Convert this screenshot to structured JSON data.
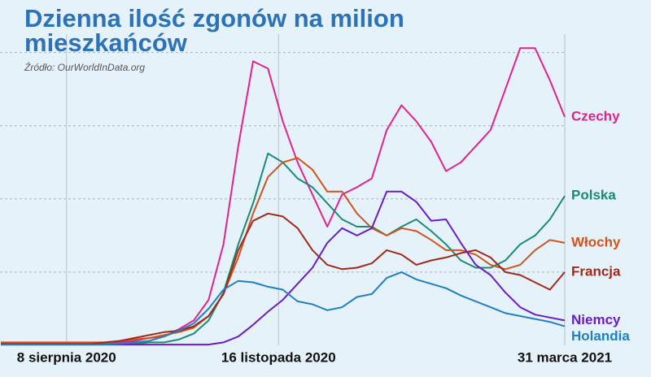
{
  "chart_data": {
    "type": "line",
    "title": "Dzienna ilość zgonów na milion mieszkańców",
    "subtitle": "Źródło: OurWorldInData.org",
    "x": [
      "2020-07-08",
      "2020-07-15",
      "2020-07-22",
      "2020-07-29",
      "2020-08-05",
      "2020-08-12",
      "2020-08-19",
      "2020-08-26",
      "2020-09-02",
      "2020-09-09",
      "2020-09-16",
      "2020-09-23",
      "2020-09-30",
      "2020-10-07",
      "2020-10-14",
      "2020-10-21",
      "2020-10-28",
      "2020-11-04",
      "2020-11-11",
      "2020-11-18",
      "2020-11-25",
      "2020-12-02",
      "2020-12-09",
      "2020-12-16",
      "2020-12-23",
      "2020-12-30",
      "2021-01-06",
      "2021-01-13",
      "2021-01-20",
      "2021-01-27",
      "2021-02-03",
      "2021-02-10",
      "2021-02-17",
      "2021-02-24",
      "2021-03-03",
      "2021-03-10",
      "2021-03-17",
      "2021-03-24",
      "2021-03-31"
    ],
    "xlim": [
      "2020-07-08",
      "2021-03-31"
    ],
    "xticks": [
      {
        "value": "2020-08-08",
        "label": "8 sierpnia 2020"
      },
      {
        "value": "2020-11-16",
        "label": "16 listopada 2020"
      },
      {
        "value": "2021-03-31",
        "label": "31 marca 2021"
      }
    ],
    "ylim": [
      0,
      20.7
    ],
    "yticks": [
      5,
      10,
      15,
      20
    ],
    "grid": true,
    "series": [
      {
        "name": "Czechy",
        "color": "#e0228e",
        "values": [
          0.1,
          0.1,
          0.1,
          0.1,
          0.1,
          0.1,
          0.1,
          0.1,
          0.2,
          0.3,
          0.5,
          0.6,
          1.1,
          1.7,
          3.1,
          6.9,
          13.6,
          19.4,
          18.9,
          15.3,
          12.5,
          10.3,
          8.1,
          10.3,
          10.8,
          11.4,
          14.7,
          16.4,
          15.3,
          13.9,
          11.9,
          12.5,
          13.6,
          14.7,
          17.5,
          20.3,
          20.3,
          18.1,
          15.6
        ]
      },
      {
        "name": "Polska",
        "color": "#1a8a76",
        "values": [
          0.1,
          0.1,
          0.1,
          0.1,
          0.1,
          0.1,
          0.1,
          0.1,
          0.1,
          0.1,
          0.2,
          0.2,
          0.4,
          0.8,
          1.7,
          3.6,
          6.9,
          9.7,
          13.1,
          12.5,
          11.4,
          10.8,
          9.7,
          8.6,
          8.1,
          8.1,
          7.5,
          8.1,
          8.6,
          7.8,
          6.9,
          5.8,
          5.3,
          5.3,
          5.8,
          6.9,
          7.5,
          8.6,
          10.2
        ]
      },
      {
        "name": "Włochy",
        "color": "#d0531c",
        "values": [
          0.2,
          0.2,
          0.2,
          0.2,
          0.2,
          0.2,
          0.2,
          0.2,
          0.3,
          0.4,
          0.5,
          0.7,
          0.9,
          1.2,
          2,
          3.5,
          6,
          9,
          11.5,
          12.5,
          12.8,
          12,
          10.5,
          10.5,
          9,
          8,
          7.5,
          8,
          7.8,
          7.2,
          6.5,
          6.5,
          6.2,
          5.5,
          5.2,
          5.5,
          6.5,
          7.2,
          7
        ]
      },
      {
        "name": "Francja",
        "color": "#a3281a",
        "values": [
          0.1,
          0.1,
          0.1,
          0.1,
          0.1,
          0.1,
          0.1,
          0.2,
          0.3,
          0.5,
          0.7,
          0.9,
          1,
          1.3,
          2,
          3.5,
          6.5,
          8.5,
          9,
          8.8,
          8,
          6.5,
          5.5,
          5.2,
          5.3,
          5.6,
          6.5,
          6.2,
          5.5,
          5.8,
          6,
          6.3,
          6.5,
          6,
          5,
          4.8,
          4.3,
          3.8,
          5
        ]
      },
      {
        "name": "Niemcy",
        "color": "#6a1cc4",
        "values": [
          0.05,
          0.05,
          0.05,
          0.05,
          0.05,
          0.05,
          0.05,
          0.05,
          0.05,
          0.05,
          0.05,
          0.05,
          0.05,
          0.05,
          0.05,
          0.2,
          0.6,
          1.4,
          2.3,
          3.1,
          4.2,
          5.3,
          7,
          8,
          7.5,
          8,
          10.5,
          10.5,
          9.8,
          8.5,
          8.6,
          7,
          5.5,
          4.8,
          3.6,
          2.6,
          2.1,
          1.9,
          1.7
        ]
      },
      {
        "name": "Holandia",
        "color": "#1f7fbf",
        "values": [
          0.05,
          0.05,
          0.05,
          0.05,
          0.05,
          0.05,
          0.05,
          0.05,
          0.1,
          0.2,
          0.3,
          0.6,
          1,
          1.5,
          2.5,
          3.8,
          4.4,
          4.3,
          4,
          3.8,
          3,
          2.8,
          2.4,
          2.6,
          3.3,
          3.5,
          4.6,
          5,
          4.5,
          4.2,
          3.9,
          3.4,
          3,
          2.6,
          2.2,
          2,
          1.8,
          1.6,
          1.3
        ]
      }
    ]
  }
}
